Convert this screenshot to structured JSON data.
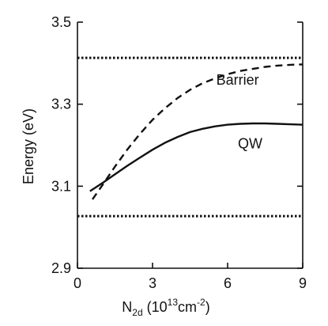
{
  "chart_data": {
    "type": "line",
    "xlabel": {
      "main": "N",
      "sub": "2d",
      "units_prefix": " (10",
      "units_sup1": "13",
      "units_mid": "cm",
      "units_sup2": "-2",
      "units_suffix": ")"
    },
    "ylabel": "Energy (eV)",
    "xlim": [
      0,
      9
    ],
    "ylim": [
      2.9,
      3.5
    ],
    "xticks": [
      0,
      3,
      6,
      9
    ],
    "xtick_labels": [
      "0",
      "3",
      "6",
      "9"
    ],
    "yticks": [
      2.9,
      3.1,
      3.3,
      3.5
    ],
    "ytick_labels": [
      "2.9",
      "3.1",
      "3.3",
      "3.5"
    ],
    "grid": false,
    "series": [
      {
        "name": "Barrier",
        "style": "dashed",
        "x": [
          0.6,
          1.0,
          1.5,
          2.0,
          2.5,
          3.0,
          3.5,
          4.0,
          4.5,
          5.0,
          5.5,
          6.0,
          6.5,
          7.0,
          7.5,
          8.0,
          8.5,
          9.0
        ],
        "y": [
          3.068,
          3.103,
          3.148,
          3.19,
          3.228,
          3.262,
          3.29,
          3.315,
          3.335,
          3.351,
          3.363,
          3.373,
          3.381,
          3.386,
          3.391,
          3.394,
          3.396,
          3.397
        ]
      },
      {
        "name": "QW",
        "style": "solid",
        "x": [
          0.5,
          1.0,
          1.5,
          2.0,
          2.5,
          3.0,
          3.5,
          4.0,
          4.5,
          5.0,
          5.5,
          6.0,
          6.5,
          7.0,
          7.5,
          8.0,
          8.5,
          9.0
        ],
        "y": [
          3.088,
          3.108,
          3.129,
          3.15,
          3.17,
          3.189,
          3.206,
          3.22,
          3.232,
          3.24,
          3.246,
          3.25,
          3.252,
          3.253,
          3.253,
          3.252,
          3.251,
          3.25
        ]
      }
    ],
    "reference_lines": [
      {
        "style": "dotted",
        "y": 3.413
      },
      {
        "style": "dotted",
        "y": 3.027
      }
    ],
    "annotations": [
      {
        "text": "Barrier",
        "x": 6.4,
        "y": 3.348
      },
      {
        "text": "QW",
        "x": 6.9,
        "y": 3.192
      }
    ],
    "colors": {
      "line": "#111111",
      "axis": "#111111",
      "background": "#ffffff"
    }
  }
}
